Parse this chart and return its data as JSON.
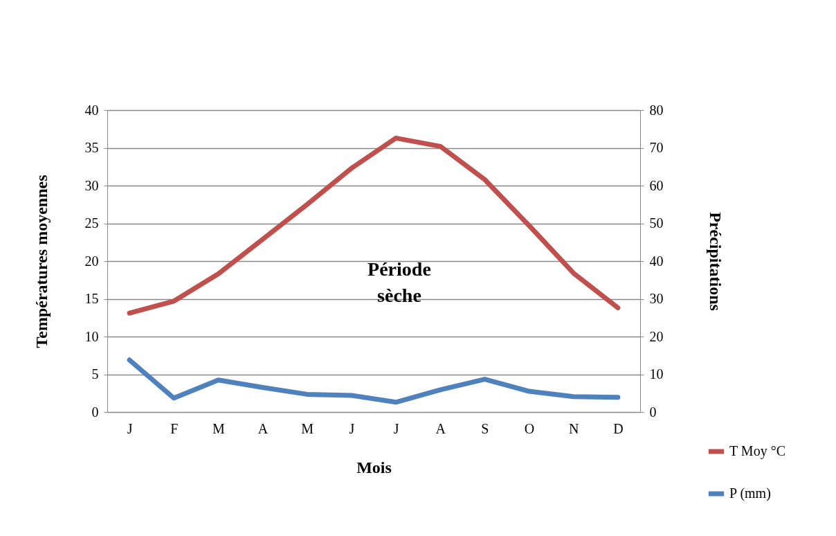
{
  "chart_data": {
    "type": "line",
    "xlabel": "Mois",
    "ylabel": "Températures moyennes",
    "y2label": "Précipitations",
    "categories": [
      "J",
      "F",
      "M",
      "A",
      "M",
      "J",
      "J",
      "A",
      "S",
      "O",
      "N",
      "D"
    ],
    "series": [
      {
        "name": "T Moy °C",
        "color": "#c0504d",
        "values": [
          13.1,
          14.7,
          18.3,
          22.9,
          27.5,
          32.3,
          36.3,
          35.2,
          30.8,
          24.7,
          18.4,
          13.8
        ]
      },
      {
        "name": "P (mm)",
        "color": "#4f81bd",
        "axis": "y2",
        "values": [
          13.8,
          3.7,
          8.5,
          6.5,
          4.7,
          4.4,
          2.6,
          5.9,
          8.7,
          5.5,
          4.1,
          3.9
        ]
      }
    ],
    "ylim": [
      0,
      40
    ],
    "yticks": [
      0,
      5,
      10,
      15,
      20,
      25,
      30,
      35,
      40
    ],
    "y2lim": [
      0,
      80
    ],
    "y2ticks": [
      0,
      10,
      20,
      30,
      40,
      50,
      60,
      70,
      80
    ],
    "grid": "y",
    "legend": "bottom right",
    "marker": "none",
    "line_style": "solid",
    "annotations": [
      "Période sèche"
    ]
  }
}
